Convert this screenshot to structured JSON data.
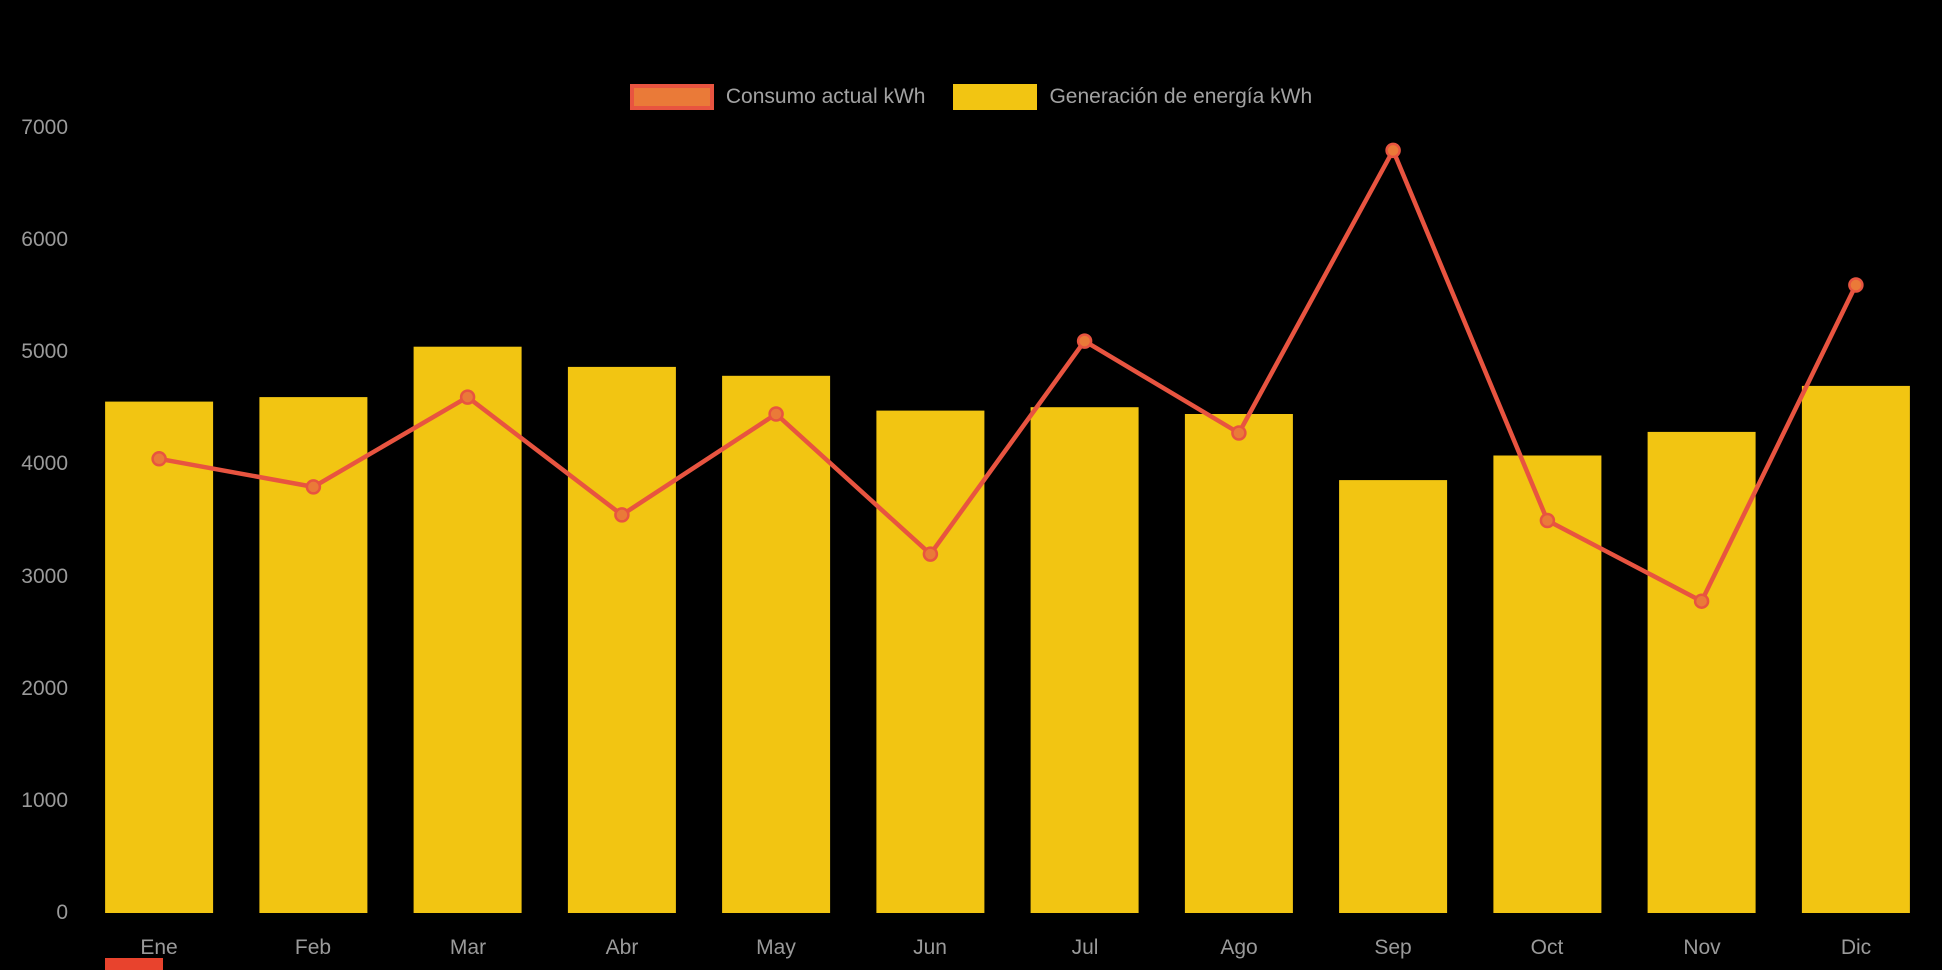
{
  "chart_data": {
    "type": "bar",
    "subtype": "combo-bar-line",
    "categories": [
      "Ene",
      "Feb",
      "Mar",
      "Abr",
      "May",
      "Jun",
      "Jul",
      "Ago",
      "Sep",
      "Oct",
      "Nov",
      "Dic"
    ],
    "series": [
      {
        "name": "Consumo actual kWh",
        "type": "line",
        "color": "#e85440",
        "point_fill": "#ea7a38",
        "values": [
          4050,
          3800,
          4600,
          3550,
          4450,
          3200,
          5100,
          4280,
          6800,
          3500,
          2780,
          5600
        ]
      },
      {
        "name": "Generación de energía kWh",
        "type": "bar",
        "color": "#f2c512",
        "values": [
          4560,
          4600,
          5050,
          4870,
          4790,
          4480,
          4510,
          4450,
          3860,
          4080,
          4290,
          4700
        ]
      }
    ],
    "yticks": [
      0,
      1000,
      2000,
      3000,
      4000,
      5000,
      6000,
      7000
    ],
    "ylim": [
      0,
      7000
    ],
    "xlabel": "",
    "ylabel": "",
    "title": "",
    "grid": false,
    "legend_position": "top",
    "background": "#000000",
    "axis_text_color": "#9a9a9a",
    "accent_red": "#e8432d"
  }
}
